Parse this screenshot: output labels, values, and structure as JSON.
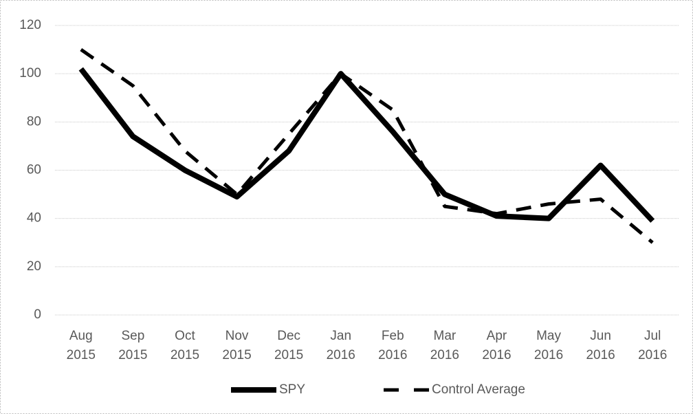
{
  "chart_data": {
    "type": "line",
    "categories": [
      "Aug 2015",
      "Sep 2015",
      "Oct 2015",
      "Nov 2015",
      "Dec 2015",
      "Jan 2016",
      "Feb 2016",
      "Mar 2016",
      "Apr 2016",
      "May 2016",
      "Jun 2016",
      "Jul 2016"
    ],
    "series": [
      {
        "name": "SPY",
        "color": "#000000",
        "dash": "solid",
        "values": [
          102,
          74,
          60,
          49,
          68,
          100,
          76,
          50,
          41,
          40,
          62,
          39
        ]
      },
      {
        "name": "Control Average",
        "color": "#000000",
        "dash": "dashed",
        "values": [
          110,
          95,
          68,
          50,
          75,
          100,
          85,
          45,
          42,
          46,
          48,
          30
        ]
      }
    ],
    "ylim": [
      0,
      120
    ],
    "yticks": [
      0,
      20,
      40,
      60,
      80,
      100,
      120
    ],
    "grid": true,
    "legend": "bottom"
  }
}
